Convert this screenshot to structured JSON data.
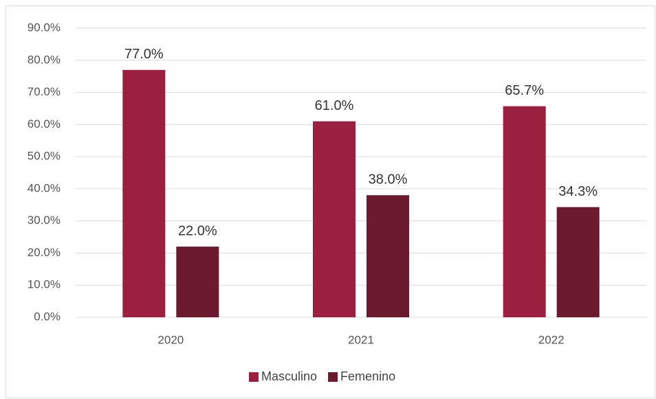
{
  "chart_data": {
    "type": "bar",
    "categories": [
      "2020",
      "2021",
      "2022"
    ],
    "series": [
      {
        "name": "Masculino",
        "color": "#9b1f3f",
        "values": [
          77.0,
          61.0,
          65.7
        ],
        "value_labels": [
          "77.0%",
          "61.0%",
          "65.7%"
        ]
      },
      {
        "name": "Femenino",
        "color": "#6b1a30",
        "values": [
          22.0,
          38.0,
          34.3
        ],
        "value_labels": [
          "22.0%",
          "38.0%",
          "34.3%"
        ]
      }
    ],
    "ylim": [
      0,
      90
    ],
    "yticks": [
      {
        "value": 0,
        "label": "0.0%"
      },
      {
        "value": 10,
        "label": "10.0%"
      },
      {
        "value": 20,
        "label": "20.0%"
      },
      {
        "value": 30,
        "label": "30.0%"
      },
      {
        "value": 40,
        "label": "40.0%"
      },
      {
        "value": 50,
        "label": "50.0%"
      },
      {
        "value": 60,
        "label": "60.0%"
      },
      {
        "value": 70,
        "label": "70.0%"
      },
      {
        "value": 80,
        "label": "80.0%"
      },
      {
        "value": 90,
        "label": "90.0%"
      }
    ],
    "grid": true,
    "legend": "bottom"
  }
}
